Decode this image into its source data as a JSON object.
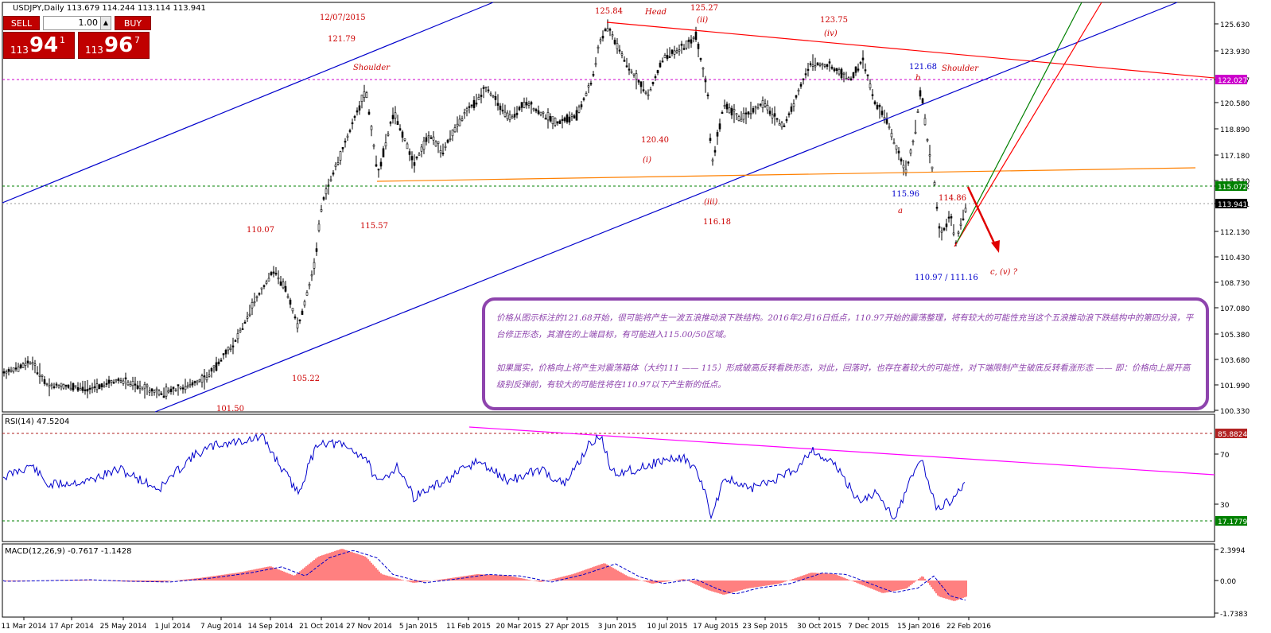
{
  "window": {
    "symbol_title": "USDJPY,Daily 113.679 114.244 113.114 113.941"
  },
  "trade_panel": {
    "sell_label": "SELL",
    "buy_label": "BUY",
    "lot_value": "1.00",
    "sell_price": {
      "prefix": "113",
      "big": "94",
      "sup": "1"
    },
    "buy_price": {
      "prefix": "113",
      "big": "96",
      "sup": "7"
    }
  },
  "colors": {
    "candles": "#000000",
    "channel": "#0000cc",
    "resistance_line": "#ff0000",
    "neckline": "#ff8000",
    "level_line": "#008000",
    "magenta_level": "#cc00cc",
    "rsi_line": "#0000cc",
    "rsi_trend": "#ff00ff",
    "macd_hist": "#ff0000",
    "macd_signal": "#0000cc",
    "box_border": "#8e44ad",
    "annotation_red": "#cc0000",
    "annotation_blue": "#0000cc"
  },
  "main_axis": {
    "ticks": [
      "125.630",
      "123.930",
      "122.027",
      "120.580",
      "118.890",
      "117.180",
      "115.530",
      "115.072",
      "113.941",
      "112.130",
      "110.430",
      "108.730",
      "107.080",
      "105.380",
      "103.680",
      "101.990",
      "100.330"
    ],
    "badges": [
      {
        "label": "122.027",
        "color": "#cc00cc"
      },
      {
        "label": "115.072",
        "color": "#008000"
      },
      {
        "label": "113.941",
        "color": "#000000"
      }
    ]
  },
  "annotations": [
    {
      "text": "12/07/2015",
      "color": "red"
    },
    {
      "text": "121.79",
      "color": "red"
    },
    {
      "text": "Shoulder",
      "color": "red"
    },
    {
      "text": "125.84",
      "color": "red"
    },
    {
      "text": "Head",
      "color": "red"
    },
    {
      "text": "125.27",
      "color": "red"
    },
    {
      "text": "(ii)",
      "color": "red"
    },
    {
      "text": "123.75",
      "color": "red"
    },
    {
      "text": "(iv)",
      "color": "red"
    },
    {
      "text": "121.68",
      "color": "blue"
    },
    {
      "text": "b",
      "color": "red"
    },
    {
      "text": "Shoulder",
      "color": "red"
    },
    {
      "text": "120.40",
      "color": "red"
    },
    {
      "text": "(i)",
      "color": "red"
    },
    {
      "text": "114.86",
      "color": "red"
    },
    {
      "text": "115.96",
      "color": "blue"
    },
    {
      "text": "a",
      "color": "red"
    },
    {
      "text": "(iii)",
      "color": "red"
    },
    {
      "text": "116.18",
      "color": "red"
    },
    {
      "text": "110.07",
      "color": "red"
    },
    {
      "text": "115.57",
      "color": "red"
    },
    {
      "text": "c, (v) ?",
      "color": "red"
    },
    {
      "text": "110.97 / 111.16",
      "color": "blue"
    },
    {
      "text": "105.22",
      "color": "red"
    },
    {
      "text": "101.50",
      "color": "red"
    }
  ],
  "info_box": {
    "paragraph1": "价格从图示标注的121.68开始，很可能将产生一波五浪推动浪下跌结构。2016年2月16日低点，110.97开始的震荡整理，将有较大的可能性充当这个五浪推动浪下跌结构中的第四分浪，平台修正形态，其潜在的上端目标，有可能进入115.00/50区域。",
    "paragraph2": "如果属实，价格向上将产生对震荡箱体（大约111 —— 115）形成破高反转看跌形态，对此，回落时，也存在着较大的可能性，对下端限制产生破底反转看涨形态 —— 即：价格向上展开高级别反弹前，有较大的可能性将在110.97以下产生新的低点。"
  },
  "rsi": {
    "title": "RSI(14) 47.5204",
    "ticks": [
      "70",
      "30"
    ],
    "badges": [
      {
        "label": "85.8824",
        "color": "#b22222"
      },
      {
        "label": "17.1779",
        "color": "#008000"
      }
    ]
  },
  "macd": {
    "title": "MACD(12,26,9) -0.7617 -1.1428",
    "ticks": [
      "2.3994",
      "0.00",
      "-1.7383"
    ]
  },
  "time_axis": {
    "labels": [
      "11 Mar 2014",
      "17 Apr 2014",
      "25 May 2014",
      "1 Jul 2014",
      "7 Aug 2014",
      "14 Sep 2014",
      "21 Oct 2014",
      "27 Nov 2014",
      "5 Jan 2015",
      "11 Feb 2015",
      "20 Mar 2015",
      "27 Apr 2015",
      "3 Jun 2015",
      "10 Jul 2015",
      "17 Aug 2015",
      "23 Sep 2015",
      "30 Oct 2015",
      "7 Dec 2015",
      "15 Jan 2016",
      "22 Feb 2016"
    ]
  }
}
